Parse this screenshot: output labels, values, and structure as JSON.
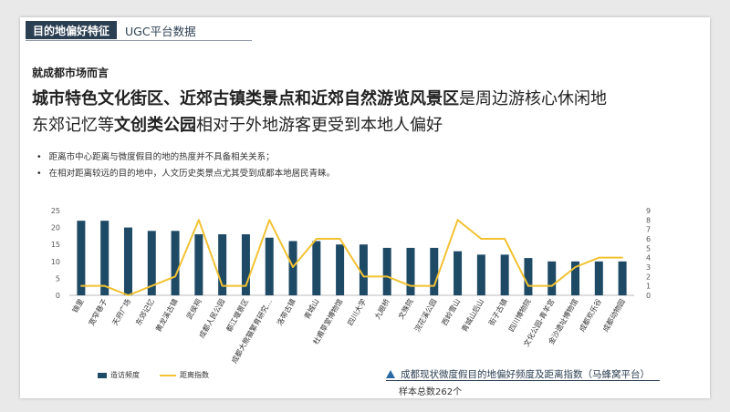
{
  "header": {
    "section_tag": "目的地偏好特征",
    "source_tag": "UGC平台数据"
  },
  "subhead": "就成都市场而言",
  "headline": {
    "p1_bold": "城市特色文化街区、近郊古镇类景点和近郊自然游览风景区",
    "p1_rest": "是周边游核心休闲地",
    "p2_start": "东郊记忆等",
    "p2_bold": "文创类公园",
    "p2_rest": "相对于外地游客更受到本地人偏好"
  },
  "bullets": [
    "距离市中心距离与微度假目的地的热度并不具备相关关系；",
    "在相对距离较远的目的地中，人文历史类景点尤其受到成都本地居民青睐。"
  ],
  "chart_data": {
    "type": "bar",
    "categories": [
      "锦里",
      "宽窄巷子",
      "天府广场",
      "东郊记忆",
      "黄龙溪古镇",
      "武侯祠",
      "成都人民公园",
      "都江堰景区",
      "成都大熊猫繁育研究…",
      "洛带古镇",
      "青城山",
      "杜甫草堂博物馆",
      "四川大学",
      "九眼桥",
      "文殊院",
      "浣花溪公园",
      "西岭雪山",
      "青城山后山",
      "街子古镇",
      "四川博物院",
      "文化公园-青羊宫",
      "金沙遗址博物馆",
      "成都欢乐谷",
      "成都动物园"
    ],
    "series": [
      {
        "name": "造访频度",
        "axis": "left",
        "type": "bar",
        "color": "#1f4a66",
        "values": [
          22,
          22,
          20,
          19,
          19,
          18,
          18,
          18,
          17,
          16,
          16,
          15,
          15,
          14,
          14,
          14,
          13,
          12,
          12,
          11,
          10,
          10,
          10,
          10
        ]
      },
      {
        "name": "距离指数",
        "axis": "right",
        "type": "line",
        "color": "#f2c233",
        "values": [
          1,
          1,
          0,
          1,
          2,
          8,
          1,
          1,
          8,
          3,
          6,
          6,
          2,
          2,
          1,
          1,
          8,
          6,
          6,
          1,
          1,
          3,
          4,
          4
        ]
      }
    ],
    "ylim_left": [
      0,
      25
    ],
    "yticks_left": [
      0,
      5,
      10,
      15,
      20,
      25
    ],
    "ylim_right": [
      0,
      9
    ],
    "yticks_right": [
      0,
      1,
      2,
      3,
      4,
      5,
      6,
      7,
      8,
      9
    ],
    "legend_position": "bottom-left",
    "grid": false
  },
  "source": {
    "caption": "成都现状微度假目的地偏好频度及距离指数（马蜂窝平台）",
    "sample": "样本总数262个"
  }
}
